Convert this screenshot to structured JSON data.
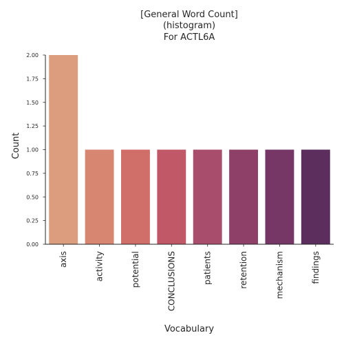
{
  "chart_data": {
    "type": "bar",
    "title_lines": [
      "[General Word Count]",
      "(histogram)",
      "For ACTL6A"
    ],
    "xlabel": "Vocabulary",
    "ylabel": "Count",
    "categories": [
      "axis",
      "activity",
      "potential",
      "CONCLUSIONS",
      "patients",
      "retention",
      "mechanism",
      "findings"
    ],
    "values": [
      2,
      1,
      1,
      1,
      1,
      1,
      1,
      1
    ],
    "ylim": [
      0,
      2.0
    ],
    "yticks": [
      0.0,
      0.25,
      0.5,
      0.75,
      1.0,
      1.25,
      1.5,
      1.75,
      2.0
    ],
    "ytick_labels": [
      "0.00",
      "0.25",
      "0.50",
      "0.75",
      "1.00",
      "1.25",
      "1.50",
      "1.75",
      "2.00"
    ],
    "colors": [
      "#DB9D7D",
      "#D68671",
      "#D06E6A",
      "#C15867",
      "#A94D6C",
      "#8F4069",
      "#763766",
      "#5C2E5E"
    ],
    "grid": false,
    "legend": "none"
  }
}
